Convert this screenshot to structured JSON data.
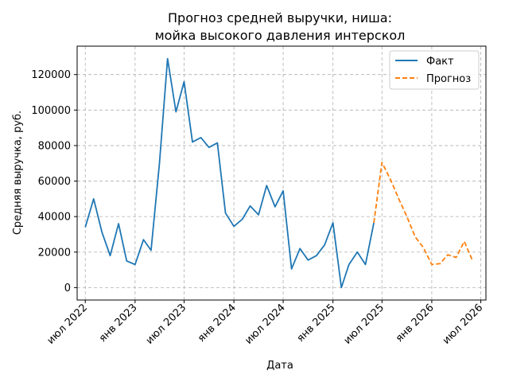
{
  "chart_data": {
    "type": "line",
    "title_line1": "Прогноз средней выручки, ниша:",
    "title_line2": "мойка высокого давления интерскол",
    "xlabel": "Дата",
    "ylabel": "Средняя выручка, руб.",
    "ylim": [
      -7000,
      136000
    ],
    "yticks": [
      0,
      20000,
      40000,
      60000,
      80000,
      100000,
      120000
    ],
    "xlim": [
      "2022-06-01",
      "2026-07-20"
    ],
    "xticks": [
      {
        "date": "2022-07-01",
        "label": "июл 2022"
      },
      {
        "date": "2023-01-01",
        "label": "янв 2023"
      },
      {
        "date": "2023-07-01",
        "label": "июл 2023"
      },
      {
        "date": "2024-01-01",
        "label": "янв 2024"
      },
      {
        "date": "2024-07-01",
        "label": "июл 2024"
      },
      {
        "date": "2025-01-01",
        "label": "янв 2025"
      },
      {
        "date": "2025-07-01",
        "label": "июл 2025"
      },
      {
        "date": "2026-01-01",
        "label": "янв 2026"
      },
      {
        "date": "2026-07-01",
        "label": "июл 2026"
      }
    ],
    "grid": true,
    "legend_position": "top-right",
    "series": [
      {
        "name": "Факт",
        "color": "#1f77b4",
        "style": "solid",
        "points": [
          [
            "2022-07-01",
            34000
          ],
          [
            "2022-08-01",
            50000
          ],
          [
            "2022-09-01",
            31000
          ],
          [
            "2022-10-01",
            18000
          ],
          [
            "2022-11-01",
            36000
          ],
          [
            "2022-12-01",
            15000
          ],
          [
            "2023-01-01",
            13000
          ],
          [
            "2023-02-01",
            27000
          ],
          [
            "2023-03-01",
            21000
          ],
          [
            "2023-04-01",
            70000
          ],
          [
            "2023-05-01",
            129000
          ],
          [
            "2023-06-01",
            99000
          ],
          [
            "2023-07-01",
            116000
          ],
          [
            "2023-08-01",
            82000
          ],
          [
            "2023-09-01",
            84500
          ],
          [
            "2023-10-01",
            79000
          ],
          [
            "2023-11-01",
            81500
          ],
          [
            "2023-12-01",
            42000
          ],
          [
            "2024-01-01",
            34500
          ],
          [
            "2024-02-01",
            38500
          ],
          [
            "2024-03-01",
            46000
          ],
          [
            "2024-04-01",
            41000
          ],
          [
            "2024-05-01",
            57500
          ],
          [
            "2024-06-01",
            45500
          ],
          [
            "2024-07-01",
            54500
          ],
          [
            "2024-08-01",
            10500
          ],
          [
            "2024-09-01",
            22000
          ],
          [
            "2024-10-01",
            15500
          ],
          [
            "2024-11-01",
            18000
          ],
          [
            "2024-12-01",
            24000
          ],
          [
            "2025-01-01",
            36500
          ],
          [
            "2025-02-01",
            0
          ],
          [
            "2025-03-01",
            13000
          ],
          [
            "2025-04-01",
            20000
          ],
          [
            "2025-05-01",
            13000
          ],
          [
            "2025-06-01",
            36500
          ]
        ]
      },
      {
        "name": "Прогноз",
        "color": "#ff7f0e",
        "style": "dashed",
        "points": [
          [
            "2025-06-01",
            36500
          ],
          [
            "2025-07-01",
            70500
          ],
          [
            "2025-08-01",
            61000
          ],
          [
            "2025-09-01",
            50000
          ],
          [
            "2025-10-01",
            40000
          ],
          [
            "2025-11-01",
            28500
          ],
          [
            "2025-12-01",
            22500
          ],
          [
            "2026-01-01",
            13000
          ],
          [
            "2026-02-01",
            13500
          ],
          [
            "2026-03-01",
            18500
          ],
          [
            "2026-04-01",
            17000
          ],
          [
            "2026-05-01",
            26000
          ],
          [
            "2026-06-01",
            15000
          ]
        ]
      }
    ]
  }
}
